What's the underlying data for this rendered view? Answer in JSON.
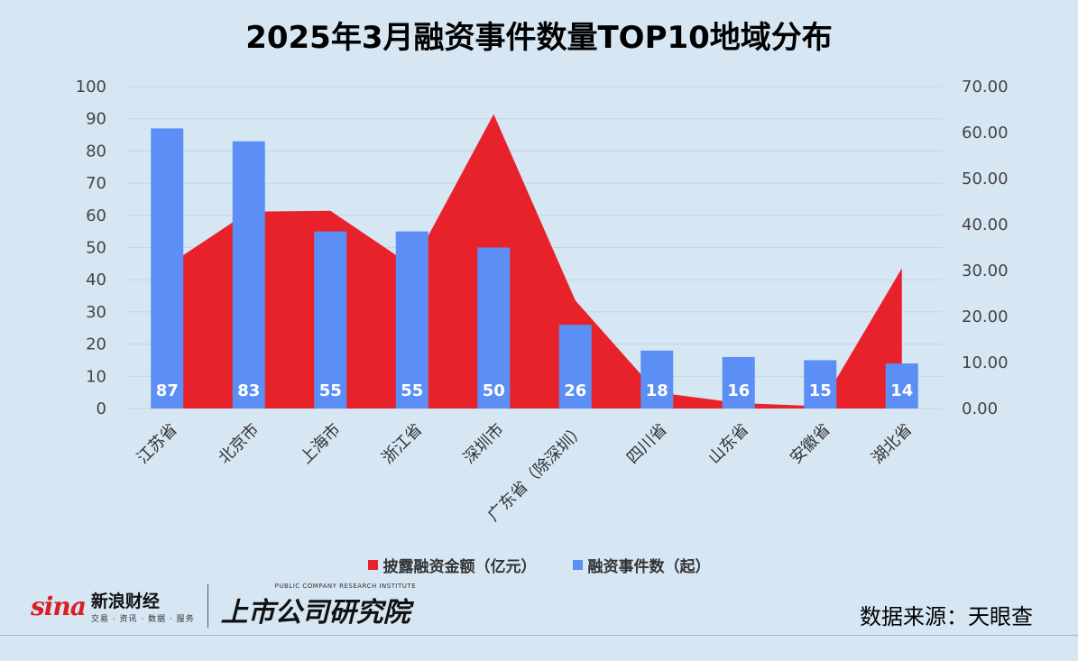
{
  "title": "2025年3月融资事件数量TOP10地域分布",
  "legend": {
    "amount_label": "披露融资金额（亿元）",
    "count_label": "融资事件数（起）"
  },
  "colors": {
    "amount": "#e8222a",
    "count": "#5b8ff5",
    "grid": "#c5d4e0",
    "background": "#d6e6f3"
  },
  "footer": {
    "sina_logo": "sina",
    "sina_name": "新浪财经",
    "sina_sub": "交易 · 资讯 · 数据 · 服务",
    "institute_en": "PUBLIC COMPANY RESEARCH INSTITUTE",
    "institute_zh": "上市公司研究院",
    "source": "数据来源：天眼查"
  },
  "chart_data": {
    "type": "bar",
    "categories": [
      "江苏省",
      "北京市",
      "上海市",
      "浙江省",
      "深圳市",
      "广东省（除深圳）",
      "四川省",
      "山东省",
      "安徽省",
      "湖北省"
    ],
    "series": [
      {
        "name": "融资事件数（起）",
        "type": "bar",
        "axis": "left",
        "values": [
          87,
          83,
          55,
          55,
          50,
          26,
          18,
          16,
          15,
          14
        ],
        "data_labels": [
          "87",
          "83",
          "55",
          "55",
          "50",
          "26",
          "18",
          "16",
          "15",
          "14"
        ]
      },
      {
        "name": "披露融资金额（亿元）",
        "type": "area",
        "axis": "right",
        "values": [
          31.0,
          42.8,
          43.0,
          31.0,
          64.0,
          23.5,
          3.5,
          1.2,
          0.5,
          30.5
        ]
      }
    ],
    "ylim_left": [
      0,
      100
    ],
    "yticks_left": [
      "0",
      "10",
      "20",
      "30",
      "40",
      "50",
      "60",
      "70",
      "80",
      "90",
      "100"
    ],
    "ylim_right": [
      0,
      70
    ],
    "yticks_right": [
      "0.00",
      "10.00",
      "20.00",
      "30.00",
      "40.00",
      "50.00",
      "60.00",
      "70.00"
    ],
    "grid": true,
    "legend_position": "bottom"
  }
}
